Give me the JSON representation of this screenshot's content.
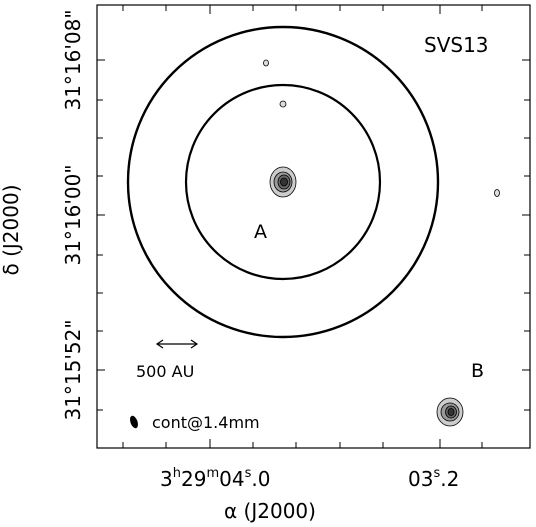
{
  "figure": {
    "source_label": "SVS13",
    "peak_labels": [
      "A",
      "B"
    ],
    "scale_bar_label": "500 AU",
    "beam_label": "cont@1.4mm",
    "x_axis_label": "α (J2000)",
    "y_axis_label": "δ (J2000)",
    "x_tick_labels": [
      {
        "h": "3",
        "hu": "h",
        "m": "29",
        "mu": "m",
        "s": "04",
        "su": "s",
        "f": ".0"
      },
      {
        "s": "03",
        "su": "s",
        "f": ".2"
      }
    ],
    "y_tick_labels": [
      "31°16'08\"",
      "31°16'00\"",
      "31°15'52\""
    ]
  }
}
